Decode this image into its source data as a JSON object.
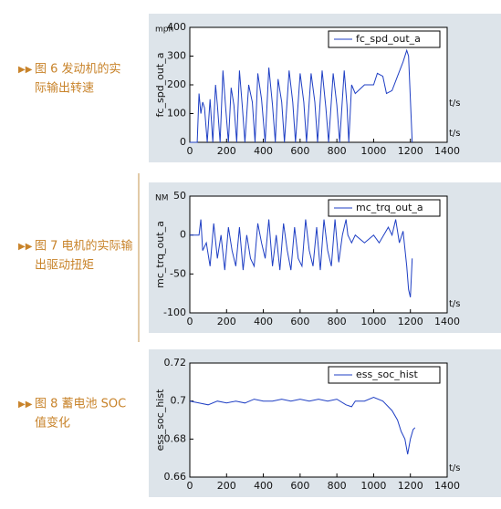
{
  "captions": [
    [
      "图 6 发动机的实",
      "际输出转速"
    ],
    [
      "图 7 电机的实际输",
      "出驱动扭矩"
    ],
    [
      "图 8 蓄电池 SOC",
      "值变化"
    ]
  ],
  "chart_data": [
    {
      "type": "line",
      "ylabel": "fc_spd_out_a",
      "y_unit": "mph",
      "xlabel": "t/s",
      "annotation": "t/s",
      "xlim": [
        0,
        1400
      ],
      "xticks": [
        0,
        200,
        400,
        600,
        800,
        1000,
        1200,
        1400
      ],
      "ylim": [
        0,
        400
      ],
      "yticks": [
        0,
        100,
        200,
        300,
        400
      ],
      "legend": "northeast",
      "x": [
        0,
        40,
        50,
        60,
        70,
        80,
        95,
        110,
        125,
        140,
        150,
        165,
        180,
        195,
        210,
        225,
        240,
        255,
        270,
        285,
        300,
        320,
        340,
        355,
        370,
        390,
        410,
        430,
        450,
        465,
        480,
        500,
        515,
        540,
        560,
        575,
        600,
        620,
        635,
        660,
        680,
        695,
        720,
        740,
        755,
        780,
        800,
        815,
        840,
        855,
        865,
        880,
        900,
        950,
        1000,
        1020,
        1050,
        1070,
        1100,
        1130,
        1160,
        1180,
        1190,
        1200,
        1210
      ],
      "series": [
        {
          "name": "fc_spd_out_a",
          "color": "#1f3fc4",
          "values": [
            0,
            0,
            170,
            100,
            140,
            120,
            0,
            150,
            0,
            200,
            130,
            0,
            250,
            120,
            0,
            190,
            130,
            0,
            250,
            130,
            0,
            200,
            140,
            0,
            240,
            150,
            0,
            260,
            130,
            0,
            220,
            140,
            0,
            250,
            140,
            0,
            240,
            140,
            0,
            240,
            140,
            0,
            250,
            120,
            0,
            240,
            130,
            0,
            250,
            130,
            0,
            200,
            170,
            200,
            200,
            240,
            230,
            170,
            180,
            230,
            280,
            320,
            300,
            150,
            0
          ]
        }
      ]
    },
    {
      "type": "line",
      "ylabel": "mc_trq_out_a",
      "y_unit": "NM",
      "xlabel": "t/s",
      "xlim": [
        0,
        1400
      ],
      "xticks": [
        0,
        200,
        400,
        600,
        800,
        1000,
        1200,
        1400
      ],
      "ylim": [
        -100,
        50
      ],
      "yticks": [
        -100,
        -50,
        0,
        50
      ],
      "legend": "northeast",
      "x": [
        0,
        50,
        60,
        70,
        90,
        110,
        130,
        150,
        170,
        190,
        210,
        230,
        250,
        270,
        290,
        310,
        330,
        350,
        370,
        390,
        410,
        430,
        450,
        470,
        490,
        510,
        530,
        550,
        570,
        590,
        610,
        630,
        650,
        670,
        690,
        710,
        730,
        750,
        770,
        790,
        810,
        830,
        850,
        860,
        880,
        900,
        950,
        1000,
        1030,
        1080,
        1100,
        1120,
        1140,
        1160,
        1180,
        1190,
        1200,
        1210
      ],
      "series": [
        {
          "name": "mc_trq_out_a",
          "color": "#1f3fc4",
          "values": [
            0,
            0,
            20,
            -20,
            -10,
            -40,
            15,
            -30,
            0,
            -45,
            10,
            -20,
            -40,
            10,
            -45,
            0,
            -30,
            -40,
            15,
            -10,
            -30,
            20,
            -40,
            0,
            -45,
            15,
            -20,
            -45,
            10,
            -30,
            -40,
            20,
            -20,
            -40,
            10,
            -45,
            20,
            -20,
            -40,
            20,
            -35,
            0,
            20,
            0,
            -10,
            0,
            -10,
            0,
            -10,
            10,
            0,
            20,
            -10,
            5,
            -40,
            -70,
            -80,
            -30
          ]
        }
      ]
    },
    {
      "type": "line",
      "ylabel": "ess_soc_hist",
      "xlabel": "t/s",
      "xlim": [
        0,
        1400
      ],
      "xticks": [
        0,
        200,
        400,
        600,
        800,
        1000,
        1200,
        1400
      ],
      "ylim": [
        0.66,
        0.72
      ],
      "yticks": [
        0.66,
        0.68,
        0.7,
        0.72
      ],
      "legend": "northeast",
      "x": [
        0,
        50,
        100,
        150,
        200,
        250,
        300,
        350,
        400,
        450,
        500,
        550,
        600,
        650,
        700,
        750,
        800,
        850,
        880,
        900,
        950,
        1000,
        1050,
        1100,
        1130,
        1150,
        1170,
        1185,
        1200,
        1215,
        1225
      ],
      "series": [
        {
          "name": "ess_soc_hist",
          "color": "#1f3fc4",
          "values": [
            0.7,
            0.699,
            0.698,
            0.7,
            0.699,
            0.7,
            0.699,
            0.701,
            0.7,
            0.7,
            0.701,
            0.7,
            0.701,
            0.7,
            0.701,
            0.7,
            0.701,
            0.698,
            0.697,
            0.7,
            0.7,
            0.702,
            0.7,
            0.695,
            0.69,
            0.684,
            0.68,
            0.672,
            0.68,
            0.685,
            0.686
          ]
        }
      ]
    }
  ]
}
